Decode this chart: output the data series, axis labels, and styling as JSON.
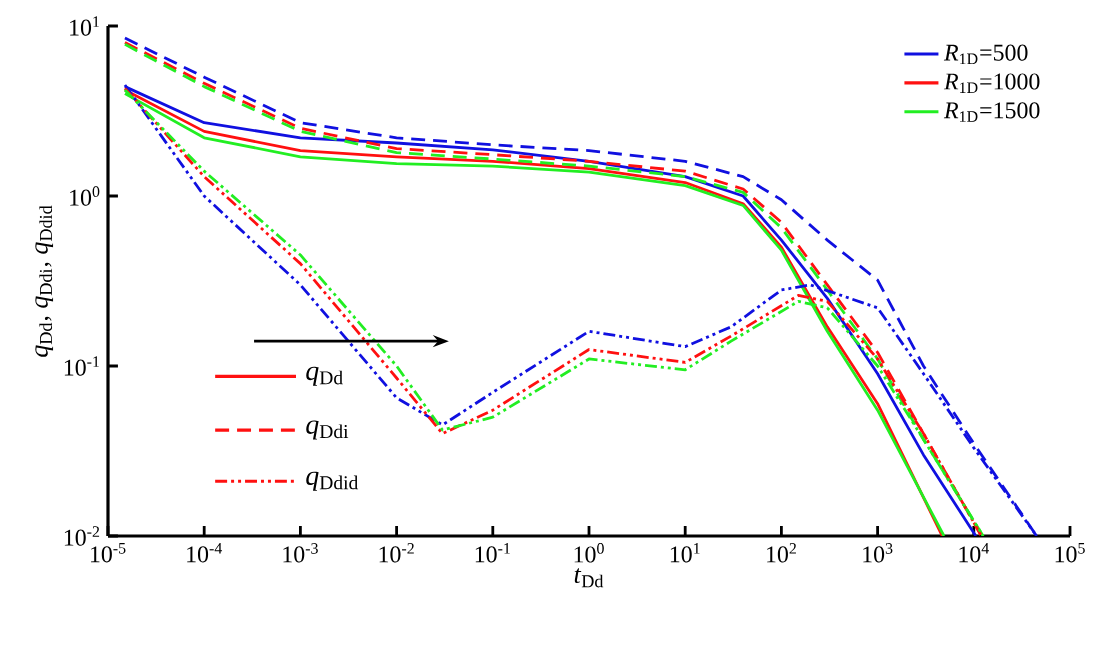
{
  "chart_data": {
    "type": "line",
    "xlabel": "*t*$_{Dd}$",
    "ylabel": "*q*$_{Dd}$, *q*$_{Ddi}$, *q*$_{Ddid}$",
    "log": "xy",
    "legend": "top right",
    "xlim": [
      1e-05,
      100000.0
    ],
    "ylim": [
      0.01,
      10
    ],
    "xticks": [
      {
        "value": 1e-05,
        "label": "10$^{-5}$"
      },
      {
        "value": 0.0001,
        "label": "10$^{-4}$"
      },
      {
        "value": 0.001,
        "label": "10$^{-3}$"
      },
      {
        "value": 0.01,
        "label": "10$^{-2}$"
      },
      {
        "value": 0.1,
        "label": "10$^{-1}$"
      },
      {
        "value": 1,
        "label": "10$^{0}$"
      },
      {
        "value": 10,
        "label": "10$^{1}$"
      },
      {
        "value": 100,
        "label": "10$^{2}$"
      },
      {
        "value": 1000,
        "label": "10$^{3}$"
      },
      {
        "value": 10000,
        "label": "10$^{4}$"
      },
      {
        "value": 100000,
        "label": "10$^{5}$"
      }
    ],
    "yticks": [
      {
        "value": 0.01,
        "label": "10$^{-2}$"
      },
      {
        "value": 0.1,
        "label": "10$^{-1}$"
      },
      {
        "value": 1,
        "label": "10$^{0}$"
      },
      {
        "value": 10,
        "label": "10$^{1}$"
      }
    ],
    "annotations": [
      "*q*$_{Dd}$",
      "*q*$_{Ddi}$",
      "*q*$_{Ddid}$"
    ],
    "series": [
      {
        "name": "*R*$_{1D}$=500",
        "color": "#1010e0",
        "line_style": "solid",
        "x": [
          1.5e-05,
          0.0001,
          0.001,
          0.01,
          0.1,
          1,
          10,
          40,
          100,
          300,
          1000,
          3000,
          10500
        ],
        "values": [
          4.4,
          2.7,
          2.2,
          2.05,
          1.87,
          1.6,
          1.3,
          1.0,
          0.55,
          0.25,
          0.09,
          0.03,
          0.01
        ]
      },
      {
        "name": "*R*$_{1D}$=1000",
        "color": "#ff1010",
        "line_style": "solid",
        "x": [
          1.5e-05,
          0.0001,
          0.001,
          0.01,
          0.1,
          1,
          10,
          40,
          100,
          300,
          1000,
          4700
        ],
        "values": [
          4.2,
          2.4,
          1.85,
          1.7,
          1.6,
          1.45,
          1.2,
          0.9,
          0.5,
          0.17,
          0.06,
          0.01
        ]
      },
      {
        "name": "*R*$_{1D}$=1500",
        "color": "#22ee22",
        "line_style": "solid",
        "x": [
          1.5e-05,
          0.0001,
          0.001,
          0.01,
          0.1,
          1,
          10,
          40,
          100,
          300,
          1000,
          4900
        ],
        "values": [
          4.0,
          2.2,
          1.7,
          1.55,
          1.5,
          1.38,
          1.15,
          0.88,
          0.48,
          0.16,
          0.055,
          0.01
        ]
      },
      {
        "color": "#1010e0",
        "line_style": "dashed",
        "x": [
          1.5e-05,
          0.0001,
          0.001,
          0.01,
          0.1,
          1,
          10,
          40,
          100,
          300,
          1000,
          3000,
          10000,
          45000
        ],
        "values": [
          8.5,
          5.0,
          2.7,
          2.2,
          2.0,
          1.85,
          1.6,
          1.3,
          0.95,
          0.55,
          0.32,
          0.1,
          0.035,
          0.01
        ]
      },
      {
        "color": "#ff1010",
        "line_style": "dashed",
        "x": [
          1.5e-05,
          0.0001,
          0.001,
          0.01,
          0.1,
          1,
          10,
          40,
          100,
          300,
          1000,
          3000,
          12000
        ],
        "values": [
          8.0,
          4.6,
          2.5,
          1.9,
          1.75,
          1.6,
          1.4,
          1.1,
          0.7,
          0.3,
          0.12,
          0.04,
          0.01
        ]
      },
      {
        "color": "#22ee22",
        "line_style": "dashed",
        "x": [
          1.5e-05,
          0.0001,
          0.001,
          0.01,
          0.1,
          1,
          10,
          40,
          100,
          300,
          1000,
          3000,
          12500
        ],
        "values": [
          7.8,
          4.4,
          2.4,
          1.8,
          1.65,
          1.5,
          1.3,
          1.05,
          0.65,
          0.28,
          0.11,
          0.037,
          0.01
        ]
      },
      {
        "color": "#1010e0",
        "line_style": "dashdot",
        "x": [
          1.5e-05,
          0.0001,
          0.001,
          0.01,
          0.03,
          0.1,
          1,
          10,
          30,
          100,
          200,
          1000,
          3000,
          10000,
          45000
        ],
        "values": [
          4.5,
          1.0,
          0.3,
          0.065,
          0.045,
          0.07,
          0.16,
          0.13,
          0.17,
          0.28,
          0.3,
          0.22,
          0.09,
          0.033,
          0.01
        ]
      },
      {
        "color": "#ff1010",
        "line_style": "dashdot",
        "x": [
          1.5e-05,
          0.0001,
          0.001,
          0.01,
          0.03,
          0.1,
          1,
          10,
          30,
          150,
          300,
          1000,
          3000,
          12000
        ],
        "values": [
          4.3,
          1.3,
          0.4,
          0.085,
          0.04,
          0.055,
          0.125,
          0.105,
          0.15,
          0.26,
          0.24,
          0.11,
          0.04,
          0.01
        ]
      },
      {
        "color": "#22ee22",
        "line_style": "dashdot",
        "x": [
          1.5e-05,
          0.0001,
          0.001,
          0.01,
          0.03,
          0.1,
          1,
          10,
          30,
          150,
          300,
          1000,
          3000,
          12500
        ],
        "values": [
          4.2,
          1.4,
          0.45,
          0.1,
          0.042,
          0.05,
          0.11,
          0.095,
          0.14,
          0.24,
          0.22,
          0.1,
          0.037,
          0.01
        ]
      }
    ]
  }
}
